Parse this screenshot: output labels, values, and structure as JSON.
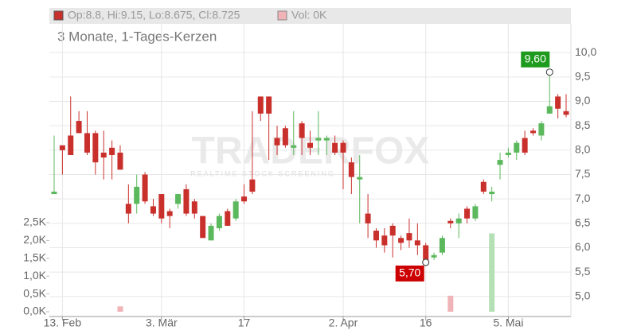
{
  "chart_data": {
    "type": "candlestick",
    "title": "3 Monate, 1-Tages-Kerzen",
    "legend_ohlc": "Op:8.8, Hi:9.15, Lo:8.675, Cl:8.725",
    "legend_volume": "Vol: 0K",
    "watermark": "TRADERFOX",
    "watermark_sub": "REALTIME STOCK SCREENING",
    "max_label": "9,60",
    "min_label": "5,70",
    "up_color": "#5cb85c",
    "down_color": "#c9302c",
    "up_volume_color": "#b5dfb5",
    "down_volume_color": "#f0b3b8",
    "categories": [
      null,
      "13. Feb",
      null,
      null,
      null,
      null,
      null,
      null,
      null,
      null,
      null,
      null,
      null,
      "3. Mär",
      null,
      null,
      null,
      null,
      null,
      null,
      null,
      null,
      null,
      "17",
      null,
      null,
      null,
      null,
      null,
      null,
      null,
      null,
      null,
      null,
      null,
      "2. Apr",
      null,
      null,
      null,
      null,
      null,
      null,
      null,
      null,
      null,
      "16",
      null,
      null,
      null,
      null,
      null,
      null,
      null,
      null,
      null,
      "5. Mai",
      null,
      null,
      null,
      null,
      null,
      null,
      null
    ],
    "open": [
      7.1,
      8.1,
      8.3,
      8.6,
      8.35,
      8.35,
      7.95,
      8.05,
      7.95,
      6.9,
      6.9,
      7.5,
      6.85,
      7.1,
      6.75,
      6.9,
      7.2,
      6.95,
      6.65,
      6.15,
      6.4,
      6.75,
      6.6,
      7.05,
      7.4,
      9.1,
      9.1,
      8.25,
      8.45,
      8.05,
      8.55,
      8.15,
      8.2,
      8.2,
      8.15,
      8.15,
      7.75,
      7.4,
      6.7,
      6.35,
      6.25,
      6.45,
      6.2,
      6.3,
      6.15,
      6.05,
      5.8,
      5.9,
      6.55,
      6.5,
      6.8,
      6.6,
      7.35,
      7.1,
      7.7,
      7.9,
      7.95,
      8.25,
      8.4,
      8.3,
      8.75,
      9.1,
      8.8
    ],
    "high": [
      8.3,
      8.1,
      9.1,
      8.8,
      8.8,
      8.4,
      8.4,
      8.2,
      8.1,
      7.3,
      7.5,
      7.55,
      7.0,
      7.1,
      6.8,
      7.1,
      7.3,
      7.0,
      6.65,
      6.5,
      6.7,
      6.8,
      7.0,
      7.3,
      8.8,
      9.1,
      9.1,
      8.5,
      8.5,
      8.8,
      8.6,
      8.4,
      8.8,
      8.3,
      8.3,
      8.2,
      7.85,
      7.9,
      7.1,
      6.4,
      6.4,
      6.5,
      6.25,
      6.6,
      6.5,
      6.1,
      5.9,
      6.25,
      6.6,
      6.7,
      6.85,
      6.9,
      7.4,
      7.25,
      7.95,
      8.05,
      8.2,
      8.4,
      8.45,
      8.6,
      9.6,
      9.15,
      9.15
    ],
    "low": [
      7.1,
      7.5,
      7.9,
      8.35,
      7.9,
      7.5,
      7.4,
      7.4,
      7.6,
      6.5,
      6.7,
      6.9,
      6.65,
      6.5,
      6.4,
      6.8,
      6.65,
      6.6,
      6.2,
      6.15,
      6.35,
      6.45,
      6.55,
      6.9,
      7.1,
      8.6,
      7.8,
      7.9,
      8.05,
      7.9,
      7.9,
      7.9,
      7.9,
      7.9,
      7.9,
      7.2,
      7.1,
      6.5,
      6.2,
      6.0,
      5.9,
      5.8,
      5.95,
      6.0,
      5.85,
      5.7,
      5.75,
      5.85,
      6.4,
      6.2,
      6.5,
      6.55,
      7.1,
      6.95,
      7.4,
      7.85,
      7.8,
      7.9,
      8.3,
      8.2,
      8.75,
      8.65,
      8.675
    ],
    "close": [
      7.15,
      8.0,
      7.9,
      8.35,
      7.95,
      7.75,
      7.85,
      7.9,
      7.6,
      6.7,
      7.25,
      6.95,
      6.7,
      6.6,
      6.65,
      7.1,
      6.7,
      6.7,
      6.2,
      6.45,
      6.65,
      6.45,
      6.95,
      6.95,
      7.15,
      8.75,
      8.75,
      8.1,
      8.1,
      8.1,
      8.25,
      8.05,
      8.25,
      8.25,
      7.95,
      7.95,
      7.45,
      7.45,
      6.5,
      6.15,
      6.05,
      6.25,
      6.1,
      6.15,
      6.05,
      5.75,
      5.85,
      6.2,
      6.5,
      6.6,
      6.6,
      6.85,
      7.15,
      7.15,
      7.8,
      7.95,
      8.15,
      7.95,
      8.35,
      8.55,
      8.9,
      8.85,
      8.725
    ],
    "volume": [
      0,
      0,
      0,
      0,
      0,
      0,
      0,
      0,
      0.15,
      0,
      0,
      0,
      0,
      0,
      0,
      0,
      0,
      0,
      0,
      0,
      0,
      0,
      0,
      0,
      0,
      0,
      0,
      0,
      0,
      0,
      0,
      0,
      0,
      0,
      0,
      0,
      0,
      0,
      0,
      0,
      0,
      0,
      0,
      0,
      0,
      0,
      0,
      0,
      0.45,
      0,
      0,
      0,
      0,
      2.2,
      0,
      0,
      0,
      0,
      0,
      0,
      0,
      0,
      0
    ],
    "ylim": [
      4.59,
      10.59
    ],
    "yticks": [
      {
        "value": 5.0,
        "label": "5,0"
      },
      {
        "value": 5.5,
        "label": "5,5"
      },
      {
        "value": 6.0,
        "label": "6,0"
      },
      {
        "value": 6.5,
        "label": "6,5"
      },
      {
        "value": 7.0,
        "label": "7,0"
      },
      {
        "value": 7.5,
        "label": "7,5"
      },
      {
        "value": 8.0,
        "label": "8,0"
      },
      {
        "value": 8.5,
        "label": "8,5"
      },
      {
        "value": 9.0,
        "label": "9,0"
      },
      {
        "value": 9.5,
        "label": "9,5"
      },
      {
        "value": 10.0,
        "label": "10,0"
      }
    ],
    "y2lim": [
      0,
      2.5
    ],
    "y2ticks": [
      {
        "value": 0,
        "label": "0,0K"
      },
      {
        "value": 0.5,
        "label": "0,5K"
      },
      {
        "value": 1.0,
        "label": "1,0K"
      },
      {
        "value": 1.5,
        "label": "1,5K"
      },
      {
        "value": 2.0,
        "label": "2,0K"
      },
      {
        "value": 2.5,
        "label": "2,5K"
      }
    ],
    "grid": true
  }
}
